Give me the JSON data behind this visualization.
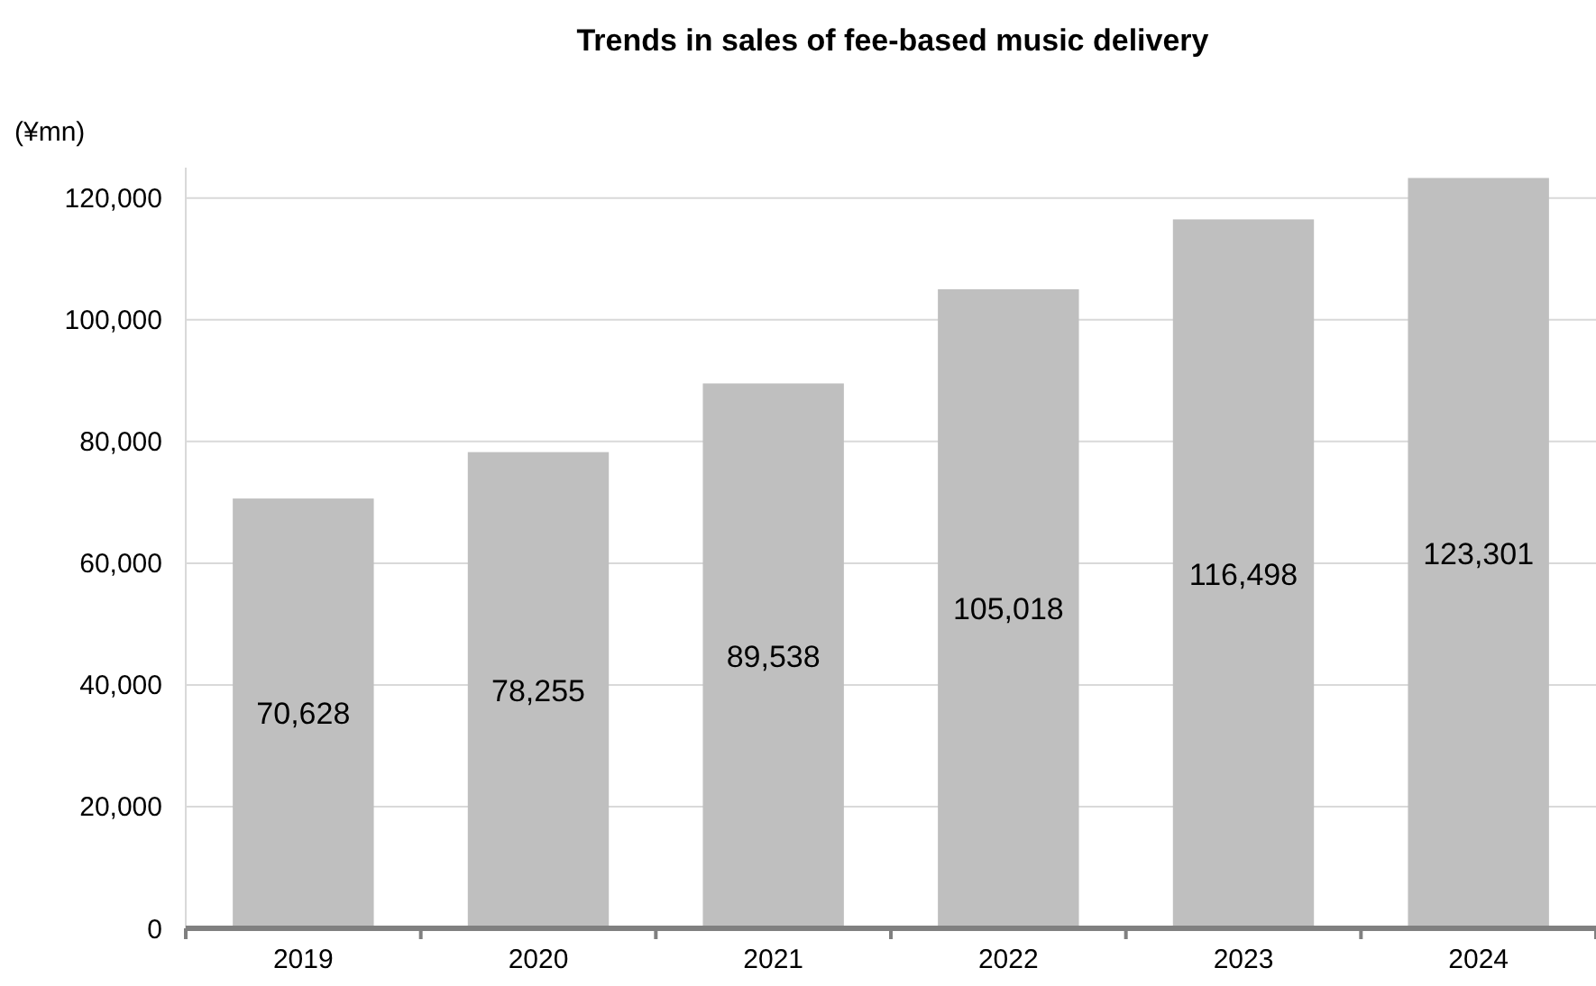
{
  "chart_data": {
    "type": "bar",
    "title": "Trends in sales of fee-based music delivery",
    "ylabel": "(¥mn)",
    "categories": [
      "2019",
      "2020",
      "2021",
      "2022",
      "2023",
      "2024"
    ],
    "values": [
      70628,
      78255,
      89538,
      105018,
      116498,
      123301
    ],
    "color": "#bfbfbf",
    "ylim": [
      0,
      125000
    ],
    "yticks": [
      {
        "value": 0,
        "label": "0"
      },
      {
        "value": 20000,
        "label": "20,000"
      },
      {
        "value": 40000,
        "label": "40,000"
      },
      {
        "value": 60000,
        "label": "60,000"
      },
      {
        "value": 80000,
        "label": "80,000"
      },
      {
        "value": 100000,
        "label": "100,000"
      },
      {
        "value": 120000,
        "label": "120,000"
      }
    ],
    "value_labels": [
      "70,628",
      "78,255",
      "89,538",
      "105,018",
      "116,498",
      "123,301"
    ],
    "grid": "y"
  }
}
